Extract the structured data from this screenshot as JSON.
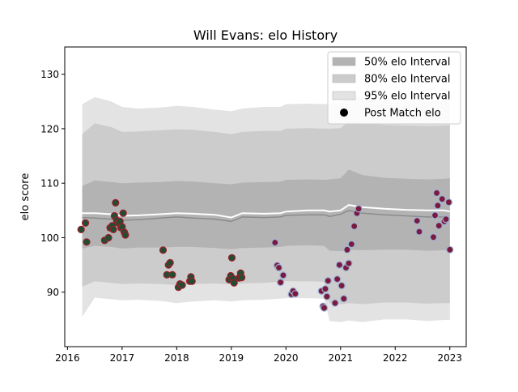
{
  "chart_data": {
    "type": "scatter",
    "title": "Will Evans: elo History",
    "xlabel": "",
    "ylabel": "elo score",
    "xlim": [
      2015.95,
      2023.3
    ],
    "ylim": [
      80,
      135
    ],
    "x_ticks": [
      2016,
      2017,
      2018,
      2019,
      2020,
      2021,
      2022,
      2023
    ],
    "y_ticks": [
      90,
      100,
      110,
      120,
      130
    ],
    "x_tick_labels": [
      "2016",
      "2017",
      "2018",
      "2019",
      "2020",
      "2021",
      "2022",
      "2023"
    ],
    "y_tick_labels": [
      "90",
      "100",
      "110",
      "120",
      "130"
    ],
    "grid": false,
    "legend_position": "top-right",
    "legend": [
      {
        "label": "50% elo Interval",
        "kind": "band",
        "color": "#b3b3b3"
      },
      {
        "label": "80% elo Interval",
        "kind": "band",
        "color": "#cccccc"
      },
      {
        "label": "95% elo Interval",
        "kind": "band",
        "color": "#e3e3e3"
      },
      {
        "label": "Post Match elo",
        "kind": "marker",
        "color": "#000000"
      }
    ],
    "colors": {
      "band95": "#e3e3e3",
      "band80": "#cccccc",
      "band50": "#b3b3b3",
      "mean_line": "#ffffff",
      "median_line": "#8c8c8c",
      "points": [
        {
          "fill": "#1f4e30",
          "edge": "#a01c2c"
        },
        {
          "fill": "#7a1a3c",
          "edge": "#9ab0d6"
        }
      ]
    },
    "band_x": [
      2016.27,
      2016.5,
      2016.8,
      2017.0,
      2017.3,
      2017.7,
      2018.0,
      2018.3,
      2018.7,
      2019.0,
      2019.2,
      2019.6,
      2019.9,
      2020.0,
      2020.4,
      2020.7,
      2020.8,
      2021.0,
      2021.15,
      2021.4,
      2021.8,
      2022.2,
      2022.6,
      2022.9,
      2023.0
    ],
    "band95": {
      "upper": [
        124.5,
        125.8,
        125.0,
        124.0,
        123.7,
        123.9,
        124.2,
        124.0,
        123.5,
        123.2,
        123.7,
        124.0,
        124.0,
        124.5,
        124.6,
        124.5,
        124.6,
        124.8,
        126.0,
        125.8,
        125.5,
        125.2,
        125.0,
        125.3,
        125.5
      ],
      "lower": [
        85.5,
        89.0,
        88.7,
        88.5,
        88.6,
        88.4,
        88.0,
        88.3,
        88.5,
        88.3,
        88.5,
        88.6,
        88.8,
        88.9,
        88.9,
        88.8,
        84.7,
        84.5,
        84.8,
        84.5,
        85.0,
        85.0,
        84.7,
        84.9,
        84.9
      ]
    },
    "band80": {
      "upper": [
        119.0,
        121.0,
        120.3,
        119.4,
        119.5,
        119.7,
        119.9,
        119.8,
        119.4,
        119.0,
        119.4,
        119.6,
        119.6,
        120.0,
        120.1,
        120.0,
        120.0,
        120.1,
        121.3,
        121.0,
        120.7,
        120.6,
        120.5,
        120.6,
        120.7
      ],
      "lower": [
        91.0,
        92.0,
        91.7,
        91.5,
        91.6,
        91.5,
        91.3,
        91.5,
        91.6,
        91.4,
        91.6,
        91.7,
        91.9,
        92.0,
        92.0,
        91.9,
        88.0,
        87.8,
        88.0,
        87.8,
        88.1,
        88.1,
        87.9,
        88.0,
        88.0
      ]
    },
    "band50": {
      "upper": [
        109.5,
        110.5,
        110.2,
        110.0,
        110.1,
        110.2,
        110.4,
        110.3,
        110.0,
        109.8,
        110.1,
        110.2,
        110.3,
        110.6,
        110.7,
        110.6,
        110.7,
        110.9,
        112.5,
        111.5,
        111.0,
        110.8,
        110.7,
        110.8,
        110.9
      ],
      "lower": [
        98.0,
        98.5,
        98.3,
        98.0,
        98.2,
        98.2,
        98.3,
        98.3,
        98.1,
        97.9,
        98.1,
        98.2,
        98.3,
        98.5,
        98.6,
        98.5,
        97.6,
        97.5,
        97.8,
        97.7,
        97.8,
        97.8,
        97.6,
        97.7,
        97.8
      ]
    },
    "mean_line": [
      104.5,
      104.5,
      104.3,
      104.0,
      104.1,
      104.3,
      104.5,
      104.4,
      104.2,
      103.7,
      104.5,
      104.4,
      104.5,
      104.8,
      105.0,
      105.0,
      104.8,
      105.0,
      106.0,
      105.6,
      105.3,
      105.1,
      105.0,
      105.0,
      104.8
    ],
    "median_line": [
      103.7,
      103.6,
      103.4,
      103.2,
      103.3,
      103.6,
      103.8,
      103.6,
      103.4,
      103.0,
      103.8,
      103.7,
      103.8,
      104.1,
      104.2,
      104.2,
      103.9,
      104.3,
      105.0,
      104.5,
      104.2,
      104.0,
      103.8,
      103.8,
      103.6
    ],
    "series": [
      {
        "x": [
          2016.25,
          2016.33,
          2016.35,
          2016.68,
          2016.75,
          2016.78,
          2016.82,
          2016.84,
          2016.86,
          2016.88,
          2016.9,
          2016.93,
          2016.96,
          2016.98,
          2017.0,
          2017.02,
          2017.04,
          2017.06,
          2017.75,
          2017.82,
          2017.85,
          2017.88,
          2017.92,
          2018.03,
          2018.06,
          2018.1,
          2018.24,
          2018.26,
          2018.28,
          2018.96,
          2018.99,
          2019.01,
          2019.03,
          2019.05,
          2019.14,
          2019.17,
          2019.19
        ],
        "y": [
          101.5,
          102.7,
          99.2,
          99.5,
          100.0,
          101.8,
          102.2,
          101.5,
          104.0,
          106.4,
          103.2,
          102.7,
          103.0,
          101.8,
          102.0,
          104.5,
          101.0,
          100.5,
          97.7,
          93.2,
          95.0,
          95.4,
          93.2,
          90.9,
          91.5,
          91.3,
          92.0,
          92.8,
          92.0,
          92.3,
          93.0,
          96.3,
          92.5,
          91.7,
          92.6,
          93.5,
          92.7
        ]
      },
      {
        "x": [
          2019.8,
          2019.84,
          2019.87,
          2019.9,
          2019.95,
          2020.1,
          2020.13,
          2020.17,
          2020.65,
          2020.68,
          2020.7,
          2020.72,
          2020.75,
          2020.77,
          2020.9,
          2020.94,
          2020.98,
          2021.02,
          2021.06,
          2021.1,
          2021.12,
          2021.15,
          2021.2,
          2021.25,
          2021.3,
          2021.33,
          2022.4,
          2022.44,
          2022.7,
          2022.73,
          2022.76,
          2022.78,
          2022.8,
          2022.86,
          2022.9,
          2022.93,
          2022.98,
          2023.0
        ],
        "y": [
          99.1,
          94.9,
          94.5,
          91.8,
          93.1,
          89.6,
          90.2,
          89.7,
          90.2,
          87.4,
          87.1,
          90.6,
          89.2,
          92.1,
          88.0,
          92.4,
          95.0,
          91.2,
          88.8,
          94.5,
          97.8,
          95.3,
          98.8,
          102.1,
          104.5,
          105.3,
          103.1,
          101.1,
          100.1,
          104.1,
          108.2,
          105.9,
          102.2,
          107.1,
          103.0,
          103.4,
          106.5,
          97.8
        ]
      }
    ]
  }
}
